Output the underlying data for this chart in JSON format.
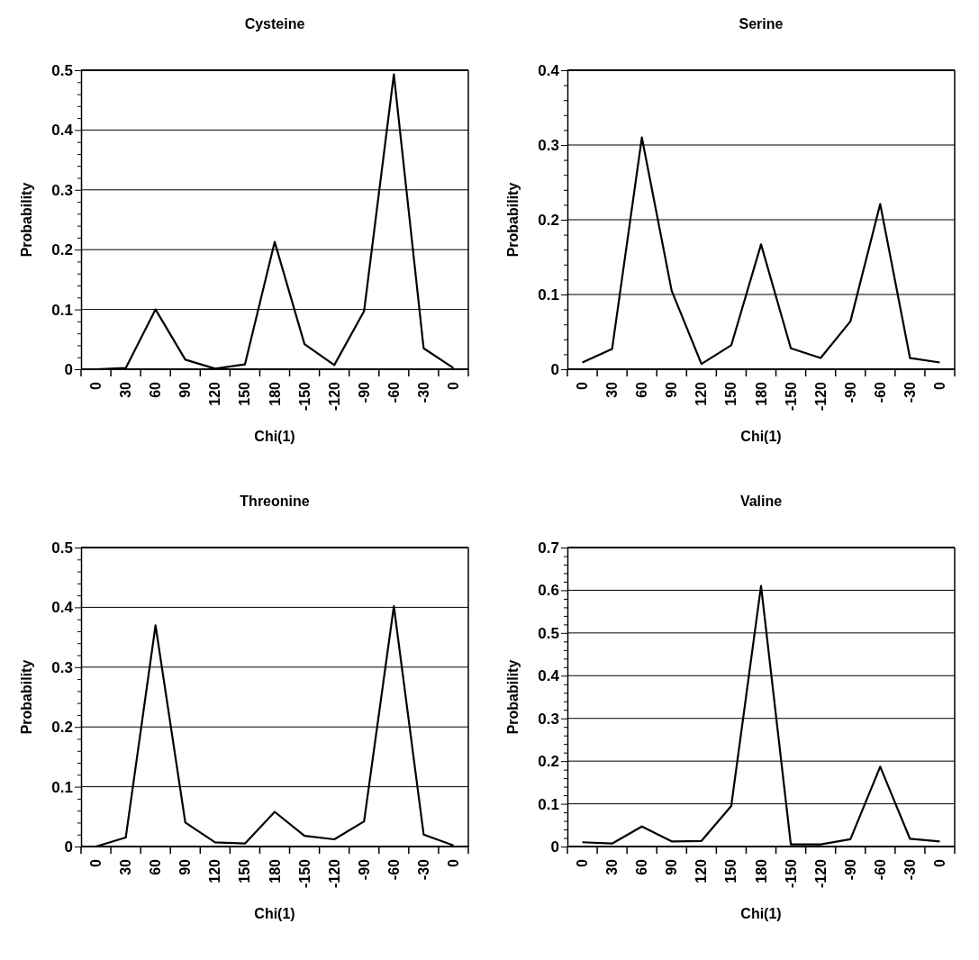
{
  "chart_data": [
    {
      "type": "line",
      "title": "Cysteine",
      "xlabel": "Chi(1)",
      "ylabel": "Probability",
      "categories": [
        "0",
        "30",
        "60",
        "90",
        "120",
        "150",
        "180",
        "-150",
        "-120",
        "-90",
        "-60",
        "-30",
        "0"
      ],
      "series": [
        {
          "color": "#000000",
          "values": [
            0,
            0.002,
            0.1,
            0.016,
            0.001,
            0.008,
            0.213,
            0.042,
            0.007,
            0.097,
            0.493,
            0.035,
            0.002
          ]
        }
      ],
      "ylim": [
        0,
        0.5
      ],
      "yticks": [
        0,
        {
          "value": 0.02,
          "label": null
        },
        {
          "value": 0.04,
          "label": null
        },
        {
          "value": 0.06,
          "label": null
        },
        {
          "value": 0.08,
          "label": null
        },
        0.1,
        {
          "value": 0.12,
          "label": null
        },
        {
          "value": 0.14,
          "label": null
        },
        {
          "value": 0.16,
          "label": null
        },
        {
          "value": 0.18,
          "label": null
        },
        0.2,
        {
          "value": 0.22,
          "label": null
        },
        {
          "value": 0.24,
          "label": null
        },
        {
          "value": 0.26,
          "label": null
        },
        {
          "value": 0.28,
          "label": null
        },
        0.3,
        {
          "value": 0.32,
          "label": null
        },
        {
          "value": 0.34,
          "label": null
        },
        {
          "value": 0.36,
          "label": null
        },
        {
          "value": 0.38,
          "label": null
        },
        0.4,
        {
          "value": 0.42,
          "label": null
        },
        {
          "value": 0.44,
          "label": null
        },
        {
          "value": 0.46,
          "label": null
        },
        {
          "value": 0.48,
          "label": null
        },
        0.5
      ],
      "grid": "y",
      "marker": "none",
      "line_style": "solid"
    },
    {
      "type": "line",
      "title": "Serine",
      "xlabel": "Chi(1)",
      "ylabel": "Probability",
      "categories": [
        "0",
        "30",
        "60",
        "90",
        "120",
        "150",
        "180",
        "-150",
        "-120",
        "-90",
        "-60",
        "-30",
        "0"
      ],
      "series": [
        {
          "color": "#000000",
          "values": [
            0.009,
            0.027,
            0.31,
            0.105,
            0.007,
            0.032,
            0.167,
            0.028,
            0.015,
            0.064,
            0.221,
            0.015,
            0.009
          ]
        }
      ],
      "ylim": [
        0,
        0.4
      ],
      "yticks": [
        0,
        {
          "value": 0.02,
          "label": null
        },
        {
          "value": 0.04,
          "label": null
        },
        {
          "value": 0.06,
          "label": null
        },
        {
          "value": 0.08,
          "label": null
        },
        0.1,
        {
          "value": 0.12,
          "label": null
        },
        {
          "value": 0.14,
          "label": null
        },
        {
          "value": 0.16,
          "label": null
        },
        {
          "value": 0.18,
          "label": null
        },
        0.2,
        {
          "value": 0.22,
          "label": null
        },
        {
          "value": 0.24,
          "label": null
        },
        {
          "value": 0.26,
          "label": null
        },
        {
          "value": 0.28,
          "label": null
        },
        0.3,
        {
          "value": 0.32,
          "label": null
        },
        {
          "value": 0.34,
          "label": null
        },
        {
          "value": 0.36,
          "label": null
        },
        {
          "value": 0.38,
          "label": null
        },
        0.4
      ],
      "grid": "y",
      "marker": "none",
      "line_style": "solid"
    },
    {
      "type": "line",
      "title": "Threonine",
      "xlabel": "Chi(1)",
      "ylabel": "Probability",
      "categories": [
        "0",
        "30",
        "60",
        "90",
        "120",
        "150",
        "180",
        "-150",
        "-120",
        "-90",
        "-60",
        "-30",
        "0"
      ],
      "series": [
        {
          "color": "#000000",
          "values": [
            0,
            0.015,
            0.37,
            0.04,
            0.007,
            0.005,
            0.058,
            0.018,
            0.012,
            0.042,
            0.402,
            0.02,
            0.002
          ]
        }
      ],
      "ylim": [
        0,
        0.5
      ],
      "yticks": [
        0,
        {
          "value": 0.02,
          "label": null
        },
        {
          "value": 0.04,
          "label": null
        },
        {
          "value": 0.06,
          "label": null
        },
        {
          "value": 0.08,
          "label": null
        },
        0.1,
        {
          "value": 0.12,
          "label": null
        },
        {
          "value": 0.14,
          "label": null
        },
        {
          "value": 0.16,
          "label": null
        },
        {
          "value": 0.18,
          "label": null
        },
        0.2,
        {
          "value": 0.22,
          "label": null
        },
        {
          "value": 0.24,
          "label": null
        },
        {
          "value": 0.26,
          "label": null
        },
        {
          "value": 0.28,
          "label": null
        },
        0.3,
        {
          "value": 0.32,
          "label": null
        },
        {
          "value": 0.34,
          "label": null
        },
        {
          "value": 0.36,
          "label": null
        },
        {
          "value": 0.38,
          "label": null
        },
        0.4,
        {
          "value": 0.42,
          "label": null
        },
        {
          "value": 0.44,
          "label": null
        },
        {
          "value": 0.46,
          "label": null
        },
        {
          "value": 0.48,
          "label": null
        },
        0.5
      ],
      "grid": "y",
      "marker": "none",
      "line_style": "solid"
    },
    {
      "type": "line",
      "title": "Valine",
      "xlabel": "Chi(1)",
      "ylabel": "Probability",
      "categories": [
        "0",
        "30",
        "60",
        "90",
        "120",
        "150",
        "180",
        "-150",
        "-120",
        "-90",
        "-60",
        "-30",
        "0"
      ],
      "series": [
        {
          "color": "#000000",
          "values": [
            0.01,
            0.007,
            0.047,
            0.012,
            0.013,
            0.095,
            0.61,
            0.005,
            0.005,
            0.017,
            0.187,
            0.018,
            0.012
          ]
        }
      ],
      "ylim": [
        0,
        0.7
      ],
      "yticks": [
        0,
        {
          "value": 0.02,
          "label": null
        },
        {
          "value": 0.04,
          "label": null
        },
        {
          "value": 0.06,
          "label": null
        },
        {
          "value": 0.08,
          "label": null
        },
        0.1,
        {
          "value": 0.12,
          "label": null
        },
        {
          "value": 0.14,
          "label": null
        },
        {
          "value": 0.16,
          "label": null
        },
        {
          "value": 0.18,
          "label": null
        },
        0.2,
        {
          "value": 0.22,
          "label": null
        },
        {
          "value": 0.24,
          "label": null
        },
        {
          "value": 0.26,
          "label": null
        },
        {
          "value": 0.28,
          "label": null
        },
        0.3,
        {
          "value": 0.32,
          "label": null
        },
        {
          "value": 0.34,
          "label": null
        },
        {
          "value": 0.36,
          "label": null
        },
        {
          "value": 0.38,
          "label": null
        },
        0.4,
        {
          "value": 0.42,
          "label": null
        },
        {
          "value": 0.44,
          "label": null
        },
        {
          "value": 0.46,
          "label": null
        },
        {
          "value": 0.48,
          "label": null
        },
        0.5,
        {
          "value": 0.52,
          "label": null
        },
        {
          "value": 0.54,
          "label": null
        },
        {
          "value": 0.56,
          "label": null
        },
        {
          "value": 0.58,
          "label": null
        },
        0.6,
        {
          "value": 0.62,
          "label": null
        },
        {
          "value": 0.64,
          "label": null
        },
        {
          "value": 0.66,
          "label": null
        },
        {
          "value": 0.68,
          "label": null
        },
        0.7
      ],
      "grid": "y",
      "marker": "none",
      "line_style": "solid"
    }
  ]
}
